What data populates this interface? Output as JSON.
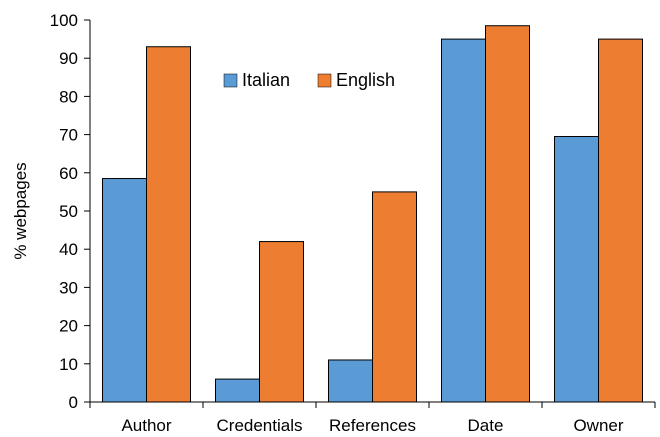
{
  "chart_data": {
    "type": "bar",
    "title": "",
    "xlabel": "",
    "ylabel": "% webpages",
    "ylim": [
      0,
      100
    ],
    "yticks": [
      0,
      10,
      20,
      30,
      40,
      50,
      60,
      70,
      80,
      90,
      100
    ],
    "categories": [
      "Author",
      "Credentials",
      "References",
      "Date",
      "Owner"
    ],
    "series": [
      {
        "name": "Italian",
        "values": [
          58.5,
          6,
          11,
          95,
          69.5
        ],
        "color": "#5b9bd5"
      },
      {
        "name": "English",
        "values": [
          93,
          42,
          55,
          98.5,
          95
        ],
        "color": "#ed7d31"
      }
    ],
    "legend": "top-center",
    "grid": false
  }
}
